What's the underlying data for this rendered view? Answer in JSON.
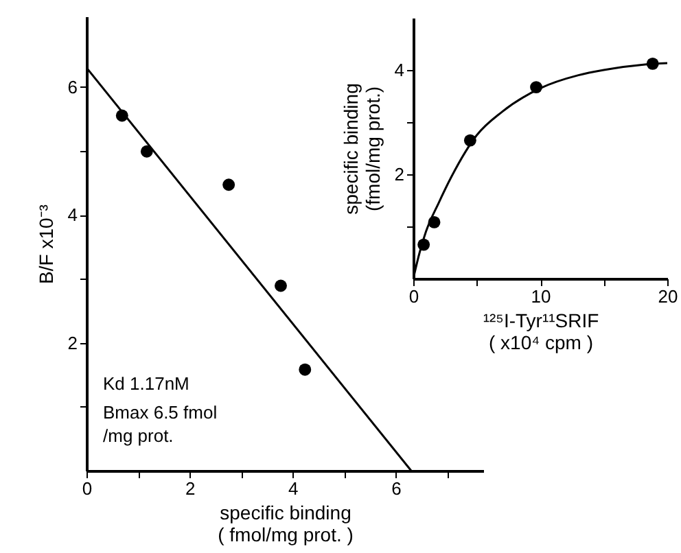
{
  "chart_data": [
    {
      "type": "scatter",
      "xlabel": "specific binding\n( fmol/mg prot. )",
      "ylabel": "B/F x10⁻³",
      "xlim": [
        0,
        7.7
      ],
      "ylim": [
        0,
        7.1
      ],
      "xticks": [
        0,
        {
          "value": 1,
          "label": null
        },
        2,
        {
          "value": 3,
          "label": null
        },
        4,
        {
          "value": 5,
          "label": null
        },
        6,
        {
          "value": 7,
          "label": null
        }
      ],
      "yticks": [
        {
          "value": 1,
          "label": null
        },
        2,
        {
          "value": 3,
          "label": null
        },
        4,
        {
          "value": 5,
          "label": null
        },
        6
      ],
      "series": [
        {
          "type": "scatter",
          "marker": "circle",
          "color": "#000000",
          "x": [
            0.69,
            1.17,
            2.76,
            3.77,
            4.24
          ],
          "values": [
            5.55,
            4.99,
            4.47,
            2.89,
            1.58
          ]
        },
        {
          "type": "line",
          "color": "#000000",
          "x": [
            0,
            6.3
          ],
          "values": [
            6.3,
            0
          ]
        }
      ],
      "annotations": [
        "Kd  1.17nM",
        "Bmax 6.5 fmol\n     /mg prot."
      ]
    },
    {
      "type": "scatter",
      "xlabel": "¹²⁵I-Tyr¹¹SRIF\n( x10⁴ cpm )",
      "ylabel": "specific binding\n(fmol/mg prot.)",
      "xlim": [
        0,
        20
      ],
      "ylim": [
        0,
        5
      ],
      "xticks": [
        0,
        {
          "value": 5,
          "label": null
        },
        10,
        {
          "value": 15,
          "label": null
        },
        20
      ],
      "yticks": [
        {
          "value": 1,
          "label": null
        },
        2,
        {
          "value": 3,
          "label": null
        },
        4
      ],
      "series": [
        {
          "type": "scatter",
          "marker": "circle",
          "color": "#000000",
          "x": [
            0.82,
            1.65,
            4.48,
            9.68,
            18.85
          ],
          "values": [
            0.65,
            1.08,
            2.65,
            3.67,
            4.12
          ]
        },
        {
          "type": "line",
          "color": "#000000",
          "x": [
            0,
            0.5,
            1,
            2,
            3,
            5,
            7,
            10,
            13,
            15,
            18,
            20
          ],
          "values": [
            0,
            0.5,
            0.9,
            1.45,
            1.95,
            2.75,
            3.2,
            3.65,
            3.9,
            4.0,
            4.1,
            4.13
          ]
        }
      ]
    }
  ]
}
